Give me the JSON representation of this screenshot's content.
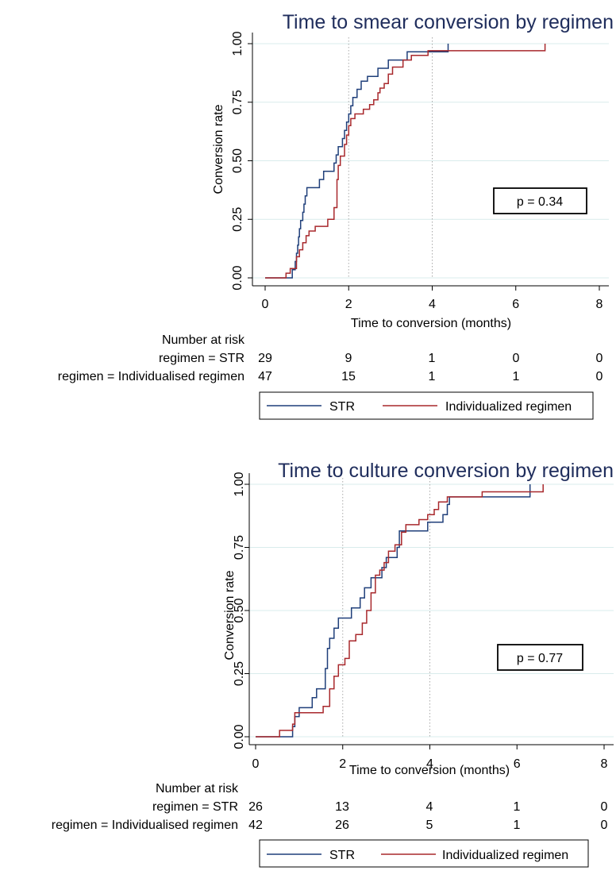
{
  "chart_data": [
    {
      "type": "line",
      "title": "Time to smear conversion by regimen",
      "xlabel": "Time to conversion (months)",
      "ylabel": "Conversion rate",
      "xlim": [
        0,
        8
      ],
      "ylim": [
        0,
        1
      ],
      "xticks": [
        "0",
        "2",
        "4",
        "6",
        "8"
      ],
      "yticks": [
        "0.00",
        "0.25",
        "0.50",
        "0.75",
        "1.00"
      ],
      "reference_lines_x": [
        2,
        4
      ],
      "annotation": "p = 0.34",
      "colors": {
        "STR": "#1f3f7a",
        "Individualized regimen": "#a8282c"
      },
      "legend": [
        "STR",
        "Individualized regimen"
      ],
      "risk_table": {
        "header": "Number at risk",
        "rows": [
          {
            "label": "regimen = STR",
            "values": [
              "29",
              "9",
              "1",
              "0",
              "0"
            ]
          },
          {
            "label": "regimen = Individualised regimen",
            "values": [
              "47",
              "15",
              "1",
              "1",
              "0"
            ]
          }
        ]
      },
      "series": [
        {
          "name": "STR",
          "points": [
            [
              0,
              0
            ],
            [
              0.65,
              0
            ],
            [
              0.65,
              0.035
            ],
            [
              0.72,
              0.035
            ],
            [
              0.72,
              0.07
            ],
            [
              0.75,
              0.07
            ],
            [
              0.75,
              0.105
            ],
            [
              0.78,
              0.105
            ],
            [
              0.78,
              0.14
            ],
            [
              0.8,
              0.14
            ],
            [
              0.8,
              0.175
            ],
            [
              0.82,
              0.175
            ],
            [
              0.82,
              0.21
            ],
            [
              0.85,
              0.21
            ],
            [
              0.85,
              0.245
            ],
            [
              0.9,
              0.245
            ],
            [
              0.9,
              0.28
            ],
            [
              0.93,
              0.28
            ],
            [
              0.93,
              0.315
            ],
            [
              0.96,
              0.315
            ],
            [
              0.96,
              0.35
            ],
            [
              1.0,
              0.35
            ],
            [
              1.0,
              0.385
            ],
            [
              1.3,
              0.385
            ],
            [
              1.3,
              0.42
            ],
            [
              1.4,
              0.42
            ],
            [
              1.4,
              0.455
            ],
            [
              1.65,
              0.455
            ],
            [
              1.65,
              0.49
            ],
            [
              1.7,
              0.49
            ],
            [
              1.7,
              0.525
            ],
            [
              1.75,
              0.525
            ],
            [
              1.75,
              0.56
            ],
            [
              1.85,
              0.56
            ],
            [
              1.85,
              0.595
            ],
            [
              1.9,
              0.595
            ],
            [
              1.9,
              0.63
            ],
            [
              1.95,
              0.63
            ],
            [
              1.95,
              0.665
            ],
            [
              2.0,
              0.665
            ],
            [
              2.0,
              0.7
            ],
            [
              2.05,
              0.7
            ],
            [
              2.05,
              0.735
            ],
            [
              2.1,
              0.735
            ],
            [
              2.1,
              0.77
            ],
            [
              2.2,
              0.77
            ],
            [
              2.2,
              0.805
            ],
            [
              2.3,
              0.805
            ],
            [
              2.3,
              0.84
            ],
            [
              2.45,
              0.84
            ],
            [
              2.45,
              0.86
            ],
            [
              2.7,
              0.86
            ],
            [
              2.7,
              0.895
            ],
            [
              2.95,
              0.895
            ],
            [
              2.95,
              0.93
            ],
            [
              3.4,
              0.93
            ],
            [
              3.4,
              0.965
            ],
            [
              4.38,
              0.965
            ],
            [
              4.38,
              1.0
            ]
          ]
        },
        {
          "name": "Individualized regimen",
          "points": [
            [
              0,
              0
            ],
            [
              0.5,
              0
            ],
            [
              0.5,
              0.02
            ],
            [
              0.6,
              0.02
            ],
            [
              0.6,
              0.04
            ],
            [
              0.75,
              0.04
            ],
            [
              0.75,
              0.09
            ],
            [
              0.82,
              0.09
            ],
            [
              0.82,
              0.12
            ],
            [
              0.9,
              0.12
            ],
            [
              0.9,
              0.15
            ],
            [
              0.98,
              0.15
            ],
            [
              0.98,
              0.18
            ],
            [
              1.05,
              0.18
            ],
            [
              1.05,
              0.2
            ],
            [
              1.2,
              0.2
            ],
            [
              1.2,
              0.22
            ],
            [
              1.5,
              0.22
            ],
            [
              1.5,
              0.25
            ],
            [
              1.65,
              0.25
            ],
            [
              1.65,
              0.3
            ],
            [
              1.72,
              0.3
            ],
            [
              1.72,
              0.42
            ],
            [
              1.75,
              0.42
            ],
            [
              1.75,
              0.48
            ],
            [
              1.8,
              0.48
            ],
            [
              1.8,
              0.52
            ],
            [
              1.9,
              0.52
            ],
            [
              1.9,
              0.57
            ],
            [
              1.95,
              0.57
            ],
            [
              1.95,
              0.61
            ],
            [
              2.0,
              0.61
            ],
            [
              2.0,
              0.65
            ],
            [
              2.05,
              0.65
            ],
            [
              2.05,
              0.68
            ],
            [
              2.15,
              0.68
            ],
            [
              2.15,
              0.7
            ],
            [
              2.35,
              0.7
            ],
            [
              2.35,
              0.72
            ],
            [
              2.5,
              0.72
            ],
            [
              2.5,
              0.74
            ],
            [
              2.6,
              0.74
            ],
            [
              2.6,
              0.76
            ],
            [
              2.7,
              0.76
            ],
            [
              2.7,
              0.79
            ],
            [
              2.75,
              0.79
            ],
            [
              2.75,
              0.81
            ],
            [
              2.85,
              0.81
            ],
            [
              2.85,
              0.83
            ],
            [
              2.95,
              0.83
            ],
            [
              2.95,
              0.87
            ],
            [
              3.05,
              0.87
            ],
            [
              3.05,
              0.9
            ],
            [
              3.3,
              0.9
            ],
            [
              3.3,
              0.93
            ],
            [
              3.5,
              0.93
            ],
            [
              3.5,
              0.95
            ],
            [
              3.9,
              0.95
            ],
            [
              3.9,
              0.97
            ],
            [
              6.7,
              0.97
            ],
            [
              6.7,
              1.0
            ]
          ]
        }
      ]
    },
    {
      "type": "line",
      "title": "Time to culture conversion by regimen",
      "xlabel": "Time to conversion (months)",
      "ylabel": "Conversion rate",
      "xlim": [
        0,
        8
      ],
      "ylim": [
        0,
        1
      ],
      "xticks": [
        "0",
        "2",
        "4",
        "6",
        "8"
      ],
      "yticks": [
        "0.00",
        "0.25",
        "0.50",
        "0.75",
        "1.00"
      ],
      "reference_lines_x": [
        2,
        4
      ],
      "annotation": "p = 0.77",
      "colors": {
        "STR": "#1f3f7a",
        "Individualized regimen": "#a8282c"
      },
      "legend": [
        "STR",
        "Individualized regimen"
      ],
      "risk_table": {
        "header": "Number at risk",
        "rows": [
          {
            "label": "regimen = STR",
            "values": [
              "26",
              "13",
              "4",
              "1",
              "0"
            ]
          },
          {
            "label": "regimen = Individualised regimen",
            "values": [
              "42",
              "26",
              "5",
              "1",
              "0"
            ]
          }
        ]
      },
      "series": [
        {
          "name": "STR",
          "points": [
            [
              0,
              0
            ],
            [
              0.85,
              0
            ],
            [
              0.85,
              0.04
            ],
            [
              0.9,
              0.04
            ],
            [
              0.9,
              0.08
            ],
            [
              1.0,
              0.08
            ],
            [
              1.0,
              0.115
            ],
            [
              1.3,
              0.115
            ],
            [
              1.3,
              0.155
            ],
            [
              1.4,
              0.155
            ],
            [
              1.4,
              0.19
            ],
            [
              1.6,
              0.19
            ],
            [
              1.6,
              0.27
            ],
            [
              1.65,
              0.27
            ],
            [
              1.65,
              0.35
            ],
            [
              1.7,
              0.35
            ],
            [
              1.7,
              0.39
            ],
            [
              1.8,
              0.39
            ],
            [
              1.8,
              0.43
            ],
            [
              1.9,
              0.43
            ],
            [
              1.9,
              0.47
            ],
            [
              2.2,
              0.47
            ],
            [
              2.2,
              0.51
            ],
            [
              2.4,
              0.51
            ],
            [
              2.4,
              0.55
            ],
            [
              2.5,
              0.55
            ],
            [
              2.5,
              0.59
            ],
            [
              2.65,
              0.59
            ],
            [
              2.65,
              0.63
            ],
            [
              2.9,
              0.63
            ],
            [
              2.9,
              0.67
            ],
            [
              3.0,
              0.67
            ],
            [
              3.0,
              0.71
            ],
            [
              3.25,
              0.71
            ],
            [
              3.25,
              0.75
            ],
            [
              3.3,
              0.75
            ],
            [
              3.3,
              0.815
            ],
            [
              3.95,
              0.815
            ],
            [
              3.95,
              0.85
            ],
            [
              4.3,
              0.85
            ],
            [
              4.3,
              0.88
            ],
            [
              4.4,
              0.88
            ],
            [
              4.4,
              0.92
            ],
            [
              4.45,
              0.92
            ],
            [
              4.45,
              0.95
            ],
            [
              6.3,
              0.95
            ],
            [
              6.3,
              1.0
            ]
          ]
        },
        {
          "name": "Individualized regimen",
          "points": [
            [
              0,
              0
            ],
            [
              0.55,
              0
            ],
            [
              0.55,
              0.025
            ],
            [
              0.85,
              0.025
            ],
            [
              0.85,
              0.05
            ],
            [
              0.9,
              0.05
            ],
            [
              0.9,
              0.095
            ],
            [
              1.55,
              0.095
            ],
            [
              1.55,
              0.12
            ],
            [
              1.7,
              0.12
            ],
            [
              1.7,
              0.19
            ],
            [
              1.8,
              0.19
            ],
            [
              1.8,
              0.24
            ],
            [
              1.9,
              0.24
            ],
            [
              1.9,
              0.285
            ],
            [
              2.05,
              0.285
            ],
            [
              2.05,
              0.31
            ],
            [
              2.15,
              0.31
            ],
            [
              2.15,
              0.38
            ],
            [
              2.3,
              0.38
            ],
            [
              2.3,
              0.405
            ],
            [
              2.45,
              0.405
            ],
            [
              2.45,
              0.45
            ],
            [
              2.55,
              0.45
            ],
            [
              2.55,
              0.5
            ],
            [
              2.65,
              0.5
            ],
            [
              2.65,
              0.57
            ],
            [
              2.75,
              0.57
            ],
            [
              2.75,
              0.64
            ],
            [
              2.85,
              0.64
            ],
            [
              2.85,
              0.66
            ],
            [
              2.95,
              0.66
            ],
            [
              2.95,
              0.69
            ],
            [
              3.05,
              0.69
            ],
            [
              3.05,
              0.735
            ],
            [
              3.2,
              0.735
            ],
            [
              3.2,
              0.76
            ],
            [
              3.35,
              0.76
            ],
            [
              3.35,
              0.81
            ],
            [
              3.45,
              0.81
            ],
            [
              3.45,
              0.84
            ],
            [
              3.75,
              0.84
            ],
            [
              3.75,
              0.86
            ],
            [
              3.95,
              0.86
            ],
            [
              3.95,
              0.88
            ],
            [
              4.1,
              0.88
            ],
            [
              4.1,
              0.9
            ],
            [
              4.2,
              0.9
            ],
            [
              4.2,
              0.93
            ],
            [
              4.4,
              0.93
            ],
            [
              4.4,
              0.95
            ],
            [
              5.2,
              0.95
            ],
            [
              5.2,
              0.97
            ],
            [
              6.6,
              0.97
            ],
            [
              6.6,
              1.0
            ]
          ]
        }
      ]
    }
  ]
}
